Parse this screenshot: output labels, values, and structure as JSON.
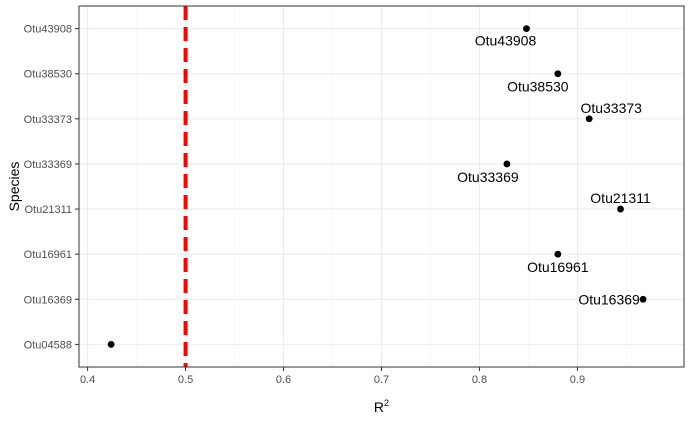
{
  "chart_data": {
    "type": "scatter",
    "title": "",
    "xlabel": "R",
    "xlabel_superscript": "2",
    "ylabel": "Species",
    "xlim": [
      0.4,
      1.0
    ],
    "x_ticks": [
      "0.4",
      "0.5",
      "0.6",
      "0.7",
      "0.8",
      "0.9"
    ],
    "categories": [
      "Otu04588",
      "Otu16369",
      "Otu16961",
      "Otu21311",
      "Otu33369",
      "Otu33373",
      "Otu38530",
      "Otu43908"
    ],
    "points": [
      {
        "species": "Otu04588",
        "x": 0.424,
        "label": ""
      },
      {
        "species": "Otu16369",
        "x": 0.967,
        "label": "Otu16369"
      },
      {
        "species": "Otu16961",
        "x": 0.88,
        "label": "Otu16961"
      },
      {
        "species": "Otu21311",
        "x": 0.944,
        "label": "Otu21311"
      },
      {
        "species": "Otu33369",
        "x": 0.828,
        "label": "Otu33369"
      },
      {
        "species": "Otu33373",
        "x": 0.912,
        "label": "Otu33373"
      },
      {
        "species": "Otu38530",
        "x": 0.88,
        "label": "Otu38530"
      },
      {
        "species": "Otu43908",
        "x": 0.848,
        "label": "Otu43908"
      }
    ],
    "threshold": {
      "x": 0.5,
      "color": "#ff0000",
      "style": "dashed"
    },
    "grid": true,
    "point_color": "#000000"
  }
}
